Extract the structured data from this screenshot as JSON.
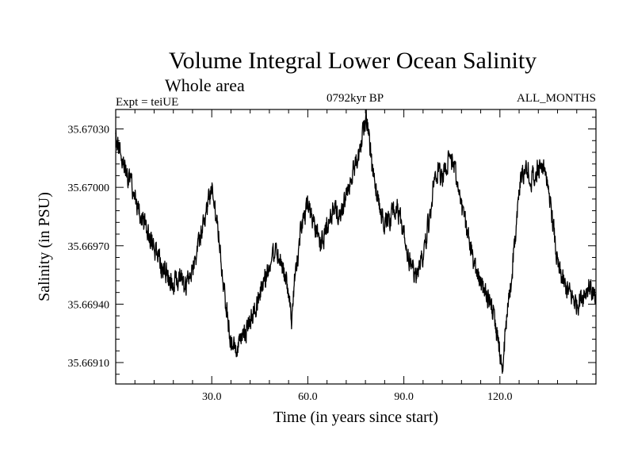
{
  "chart_data": {
    "type": "line",
    "title": "Volume Integral Lower Ocean Salinity",
    "subtitle": "Whole area",
    "annotations": {
      "left": "Expt = teiUE",
      "center": "0792kyr BP",
      "right": "ALL_MONTHS"
    },
    "xlabel": "Time (in years since start)",
    "ylabel": "Salinity (in PSU)",
    "xlim": [
      0,
      150
    ],
    "ylim": [
      35.66899,
      35.6704
    ],
    "x_ticks": [
      30,
      60,
      90,
      120
    ],
    "x_tick_labels": [
      "30.0",
      "60.0",
      "90.0",
      "120.0"
    ],
    "y_ticks": [
      35.6691,
      35.6694,
      35.6697,
      35.67,
      35.6703
    ],
    "y_tick_labels": [
      "35.66910",
      "35.66940",
      "35.66970",
      "35.67000",
      "35.67030"
    ],
    "grid": false,
    "series": [
      {
        "name": "Salinity",
        "x": [
          0,
          2,
          4,
          6,
          8,
          10,
          12,
          14,
          16,
          18,
          20,
          22,
          24,
          26,
          28,
          30,
          32,
          34,
          36,
          38,
          40,
          42,
          44,
          46,
          48,
          50,
          52,
          54,
          55,
          56,
          58,
          60,
          62,
          64,
          66,
          68,
          70,
          72,
          74,
          76,
          78,
          79,
          80,
          82,
          84,
          86,
          88,
          90,
          92,
          94,
          96,
          98,
          100,
          102,
          104,
          106,
          108,
          110,
          112,
          114,
          116,
          118,
          120,
          121,
          122,
          124,
          126,
          128,
          130,
          132,
          134,
          136,
          138,
          140,
          142,
          144,
          146,
          148,
          150
        ],
        "values": [
          35.67025,
          35.67015,
          35.67005,
          35.66995,
          35.66985,
          35.66975,
          35.6697,
          35.6696,
          35.66955,
          35.6695,
          35.66955,
          35.6695,
          35.6696,
          35.6697,
          35.66985,
          35.67,
          35.6698,
          35.66945,
          35.6692,
          35.66915,
          35.66925,
          35.6693,
          35.6694,
          35.6695,
          35.6696,
          35.6697,
          35.6696,
          35.66945,
          35.6693,
          35.66955,
          35.6698,
          35.6699,
          35.6698,
          35.6697,
          35.6698,
          35.6699,
          35.66985,
          35.66995,
          35.6701,
          35.67015,
          35.67035,
          35.6703,
          35.6701,
          35.66995,
          35.6698,
          35.66985,
          35.6699,
          35.66975,
          35.6696,
          35.66955,
          35.66965,
          35.66985,
          35.6701,
          35.67005,
          35.67015,
          35.6701,
          35.6699,
          35.66975,
          35.6696,
          35.6695,
          35.66945,
          35.66935,
          35.66915,
          35.6691,
          35.6693,
          35.6696,
          35.67,
          35.6701,
          35.67005,
          35.6701,
          35.6701,
          35.6699,
          35.6696,
          35.6695,
          35.66945,
          35.6694,
          35.66945,
          35.6695,
          35.6694
        ]
      }
    ]
  }
}
